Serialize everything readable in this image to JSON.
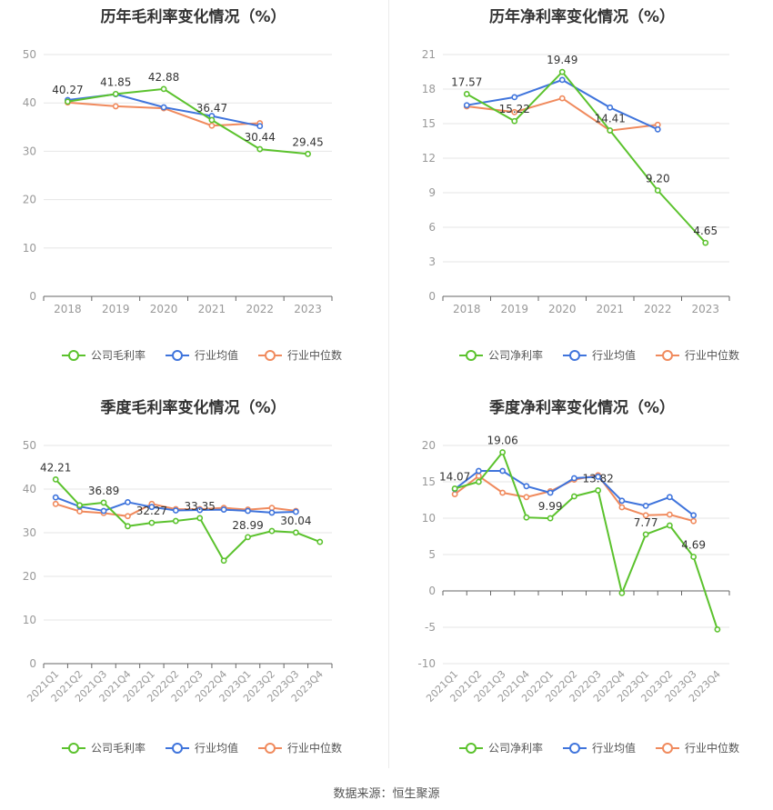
{
  "source": "数据来源：恒生聚源",
  "colors": {
    "company": "#5bc22d",
    "avg": "#3f74dc",
    "median": "#f08a5d",
    "grid": "#e6e6e6",
    "axis": "#999999"
  },
  "chart_data": [
    {
      "id": "annual-gross",
      "type": "line",
      "title": "历年毛利率变化情况（%）",
      "x": [
        "2018",
        "2019",
        "2020",
        "2021",
        "2022",
        "2023"
      ],
      "ylim": [
        0,
        50
      ],
      "yticks": [
        0,
        10,
        20,
        30,
        40,
        50
      ],
      "series": [
        {
          "name": "公司毛利率",
          "key": "company",
          "values": [
            40.27,
            41.85,
            42.88,
            36.47,
            30.44,
            29.45
          ]
        },
        {
          "name": "行业均值",
          "key": "avg",
          "values": [
            40.6,
            41.8,
            39.1,
            37.3,
            35.2,
            null
          ]
        },
        {
          "name": "行业中位数",
          "key": "median",
          "values": [
            40.1,
            39.3,
            38.9,
            35.3,
            35.8,
            null
          ]
        }
      ],
      "labels": [
        "40.27",
        "41.85",
        "42.88",
        "36.47",
        "30.44",
        "29.45"
      ]
    },
    {
      "id": "annual-net",
      "type": "line",
      "title": "历年净利率变化情况（%）",
      "x": [
        "2018",
        "2019",
        "2020",
        "2021",
        "2022",
        "2023"
      ],
      "ylim": [
        0,
        21
      ],
      "yticks": [
        0,
        3,
        6,
        9,
        12,
        15,
        18,
        21
      ],
      "series": [
        {
          "name": "公司净利率",
          "key": "company",
          "values": [
            17.57,
            15.22,
            19.49,
            14.41,
            9.2,
            4.65
          ]
        },
        {
          "name": "行业均值",
          "key": "avg",
          "values": [
            16.6,
            17.3,
            18.8,
            16.4,
            14.5,
            null
          ]
        },
        {
          "name": "行业中位数",
          "key": "median",
          "values": [
            16.5,
            16.0,
            17.2,
            14.4,
            14.9,
            null
          ]
        }
      ],
      "labels": [
        "17.57",
        "15.22",
        "19.49",
        "14.41",
        "9.20",
        "4.65"
      ]
    },
    {
      "id": "quarterly-gross",
      "type": "line",
      "title": "季度毛利率变化情况（%）",
      "x": [
        "2021Q1",
        "2021Q2",
        "2021Q3",
        "2021Q4",
        "2022Q1",
        "2022Q2",
        "2022Q3",
        "2022Q4",
        "2023Q1",
        "2023Q2",
        "2023Q3",
        "2023Q4"
      ],
      "ylim": [
        0,
        50
      ],
      "yticks": [
        0,
        10,
        20,
        30,
        40,
        50
      ],
      "series": [
        {
          "name": "公司毛利率",
          "key": "company",
          "values": [
            42.21,
            36.3,
            36.89,
            31.5,
            32.27,
            32.7,
            33.35,
            23.6,
            28.99,
            30.4,
            30.04,
            27.9
          ]
        },
        {
          "name": "行业均值",
          "key": "avg",
          "values": [
            38.1,
            36.0,
            35.0,
            37.0,
            35.9,
            35.1,
            35.2,
            35.3,
            35.0,
            34.6,
            34.8,
            null
          ]
        },
        {
          "name": "行业中位数",
          "key": "median",
          "values": [
            36.6,
            34.9,
            34.5,
            33.8,
            36.6,
            35.4,
            35.4,
            35.7,
            35.3,
            35.7,
            35.0,
            null
          ]
        }
      ],
      "labels": [
        "42.21",
        "",
        "36.89",
        "",
        "32.27",
        "",
        "33.35",
        "",
        "28.99",
        "",
        "30.04",
        ""
      ]
    },
    {
      "id": "quarterly-net",
      "type": "line",
      "title": "季度净利率变化情况（%）",
      "x": [
        "2021Q1",
        "2021Q2",
        "2021Q3",
        "2021Q4",
        "2022Q1",
        "2022Q2",
        "2022Q3",
        "2022Q4",
        "2023Q1",
        "2023Q2",
        "2023Q3",
        "2023Q4"
      ],
      "ylim": [
        -10,
        20
      ],
      "yticks": [
        -10,
        -5,
        0,
        5,
        10,
        15,
        20
      ],
      "series": [
        {
          "name": "公司净利率",
          "key": "company",
          "values": [
            14.07,
            15.0,
            19.06,
            10.1,
            9.99,
            13.0,
            13.82,
            -0.3,
            7.77,
            9.0,
            4.69,
            -5.3
          ]
        },
        {
          "name": "行业均值",
          "key": "avg",
          "values": [
            14.0,
            16.5,
            16.5,
            14.4,
            13.5,
            15.5,
            15.7,
            12.4,
            11.7,
            12.9,
            10.4,
            null
          ]
        },
        {
          "name": "行业中位数",
          "key": "median",
          "values": [
            13.3,
            15.8,
            13.5,
            12.9,
            13.7,
            15.3,
            15.9,
            11.5,
            10.4,
            10.5,
            9.6,
            null
          ]
        }
      ],
      "labels": [
        "14.07",
        "",
        "19.06",
        "",
        "9.99",
        "",
        "13.82",
        "",
        "7.77",
        "",
        "4.69",
        ""
      ]
    }
  ]
}
